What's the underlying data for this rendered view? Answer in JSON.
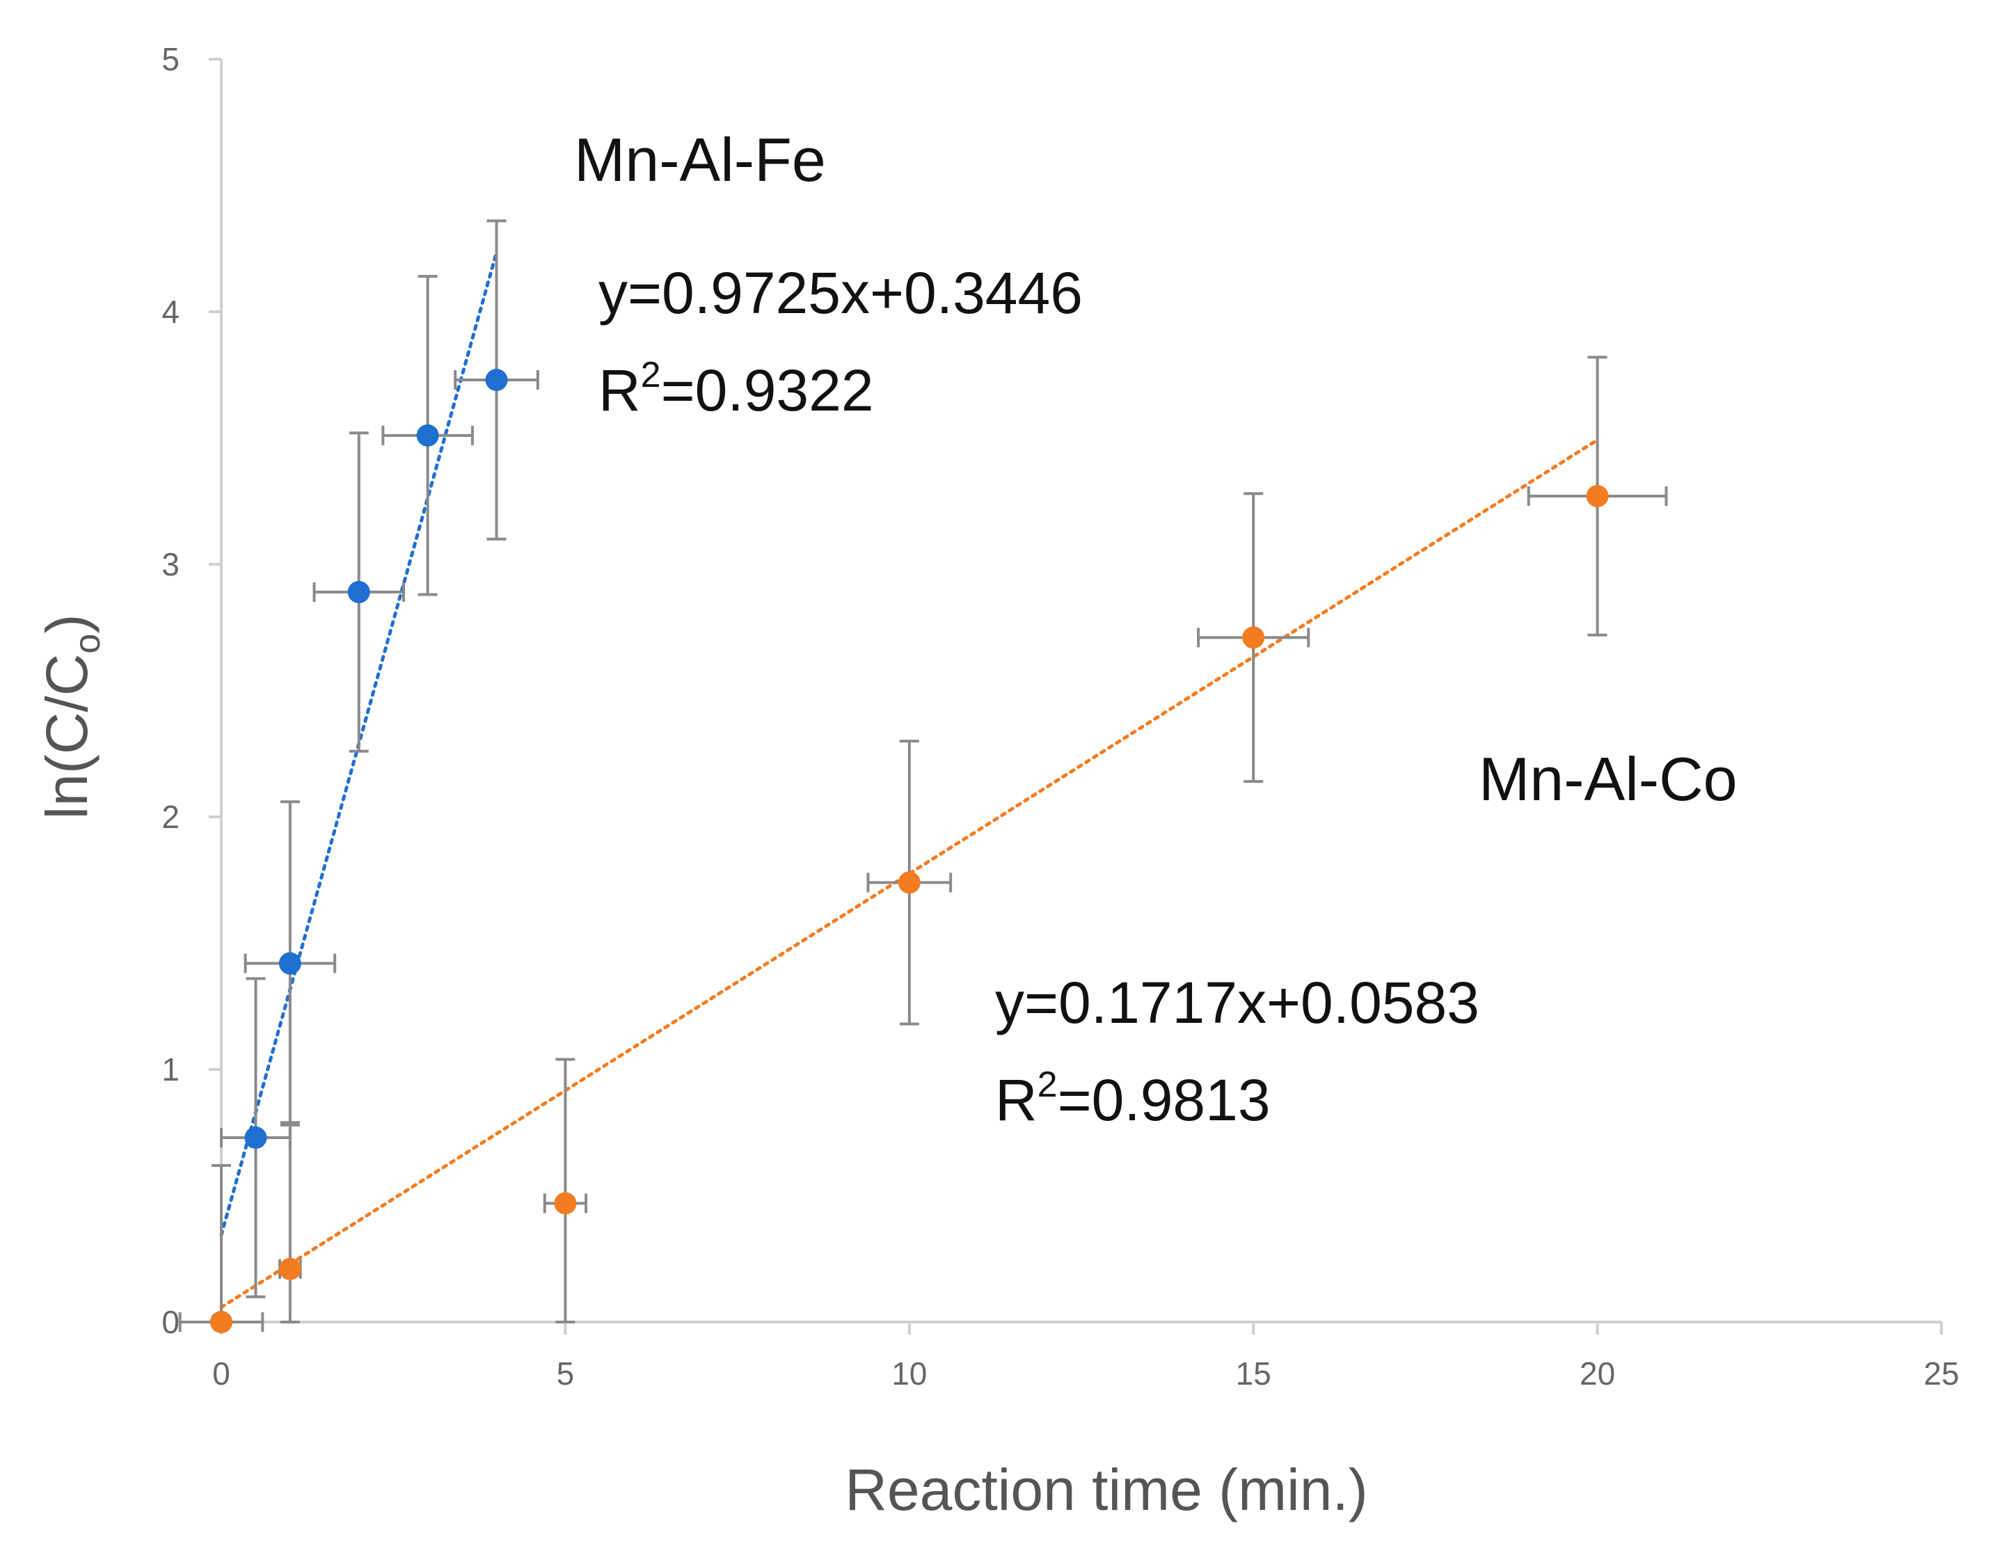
{
  "chart_data": {
    "type": "scatter",
    "title": "",
    "xlabel": "Reaction  time (min.)",
    "ylabel_parts": {
      "main": "ln(C/C",
      "sub": "o",
      "close": ")"
    },
    "xlim": [
      0,
      25
    ],
    "ylim": [
      0,
      5
    ],
    "x_ticks": [
      0,
      5,
      10,
      15,
      20,
      25
    ],
    "y_ticks": [
      0,
      1,
      2,
      3,
      4,
      5
    ],
    "grid": false,
    "series": [
      {
        "name": "Mn-Al-Fe",
        "color": "#1f6fd1",
        "points": [
          {
            "x": 0,
            "y": 0,
            "yerr": 0.62,
            "xerr": 0
          },
          {
            "x": 0.5,
            "y": 0.73,
            "yerr": 0.63,
            "xerr": 0.5
          },
          {
            "x": 1,
            "y": 1.42,
            "yerr": 0.64,
            "xerr": 0.65
          },
          {
            "x": 2,
            "y": 2.89,
            "yerr": 0.63,
            "xerr": 0.65
          },
          {
            "x": 3,
            "y": 3.51,
            "yerr": 0.63,
            "xerr": 0.65
          },
          {
            "x": 4,
            "y": 3.73,
            "yerr": 0.63,
            "xerr": 0.6
          }
        ],
        "trendline": {
          "slope": 0.9725,
          "intercept": 0.3446,
          "x_range": [
            0,
            4
          ]
        },
        "equation": "y=0.9725x+0.3446",
        "r2_prefix": "R",
        "r2_sup": "2",
        "r2_value": "=0.9322"
      },
      {
        "name": "Mn-Al-Co",
        "color": "#f47c20",
        "points": [
          {
            "x": 0,
            "y": 0,
            "yerr": 0.02,
            "xerr": 0.6
          },
          {
            "x": 1,
            "y": 0.21,
            "yerr": 0.58,
            "xerr": 0.15
          },
          {
            "x": 5,
            "y": 0.47,
            "yerr": 0.57,
            "xerr": 0.3
          },
          {
            "x": 10,
            "y": 1.74,
            "yerr": 0.56,
            "xerr": 0.6
          },
          {
            "x": 15,
            "y": 2.71,
            "yerr": 0.57,
            "xerr": 0.8
          },
          {
            "x": 20,
            "y": 3.27,
            "yerr": 0.55,
            "xerr": 1.0
          }
        ],
        "trendline": {
          "slope": 0.1717,
          "intercept": 0.0583,
          "x_range": [
            0,
            20
          ]
        },
        "equation": "y=0.1717x+0.0583",
        "r2_prefix": "R",
        "r2_sup": "2",
        "r2_value": "=0.9813"
      }
    ]
  }
}
